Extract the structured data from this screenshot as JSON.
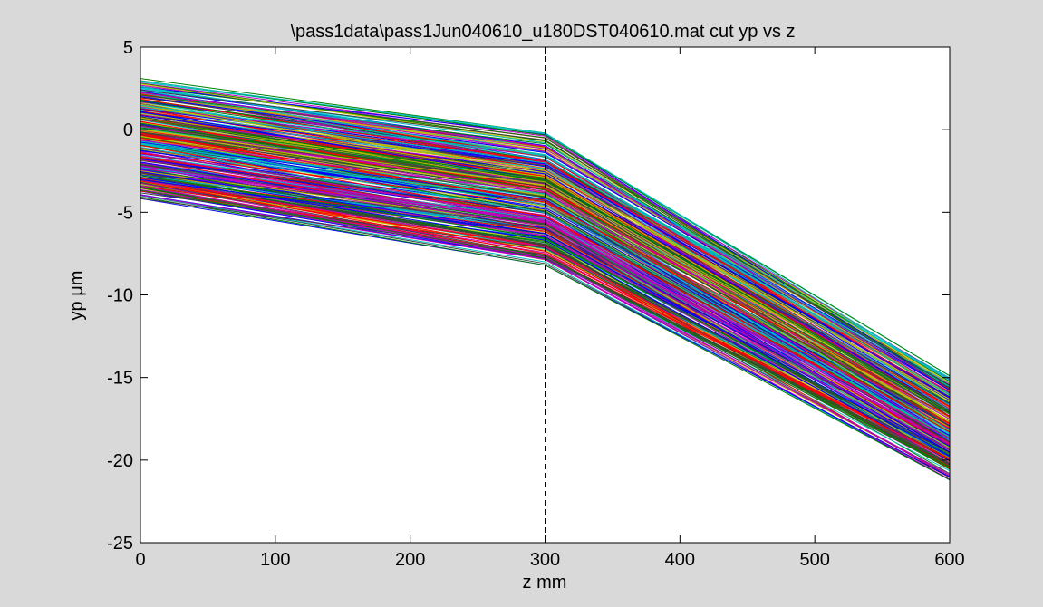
{
  "chart_data": {
    "type": "line",
    "title": "\\pass1data\\pass1Jun040610_u180DST040610.mat cut yp vs z",
    "xlabel": "z mm",
    "ylabel": "yp μm",
    "xlim": [
      0,
      600
    ],
    "ylim": [
      -25,
      5
    ],
    "xticks": [
      "0",
      "100",
      "200",
      "300",
      "400",
      "500",
      "600"
    ],
    "yticks": [
      "5",
      "0",
      "-5",
      "-10",
      "-15",
      "-20",
      "-25"
    ],
    "grid": false,
    "vertical_marker": {
      "x": 300,
      "style": "dashed"
    },
    "x": [
      0,
      300,
      600
    ],
    "series_envelope": {
      "count": "many",
      "y_at_0": [
        -4.3,
        3.2
      ],
      "y_at_300": [
        -8.2,
        -0.2
      ],
      "y_at_600": [
        -21.2,
        -14.9
      ]
    },
    "colors": [
      "#0000ff",
      "#008000",
      "#ff0000",
      "#00bfbf",
      "#bf00bf",
      "#bfbf00",
      "#404040"
    ]
  }
}
